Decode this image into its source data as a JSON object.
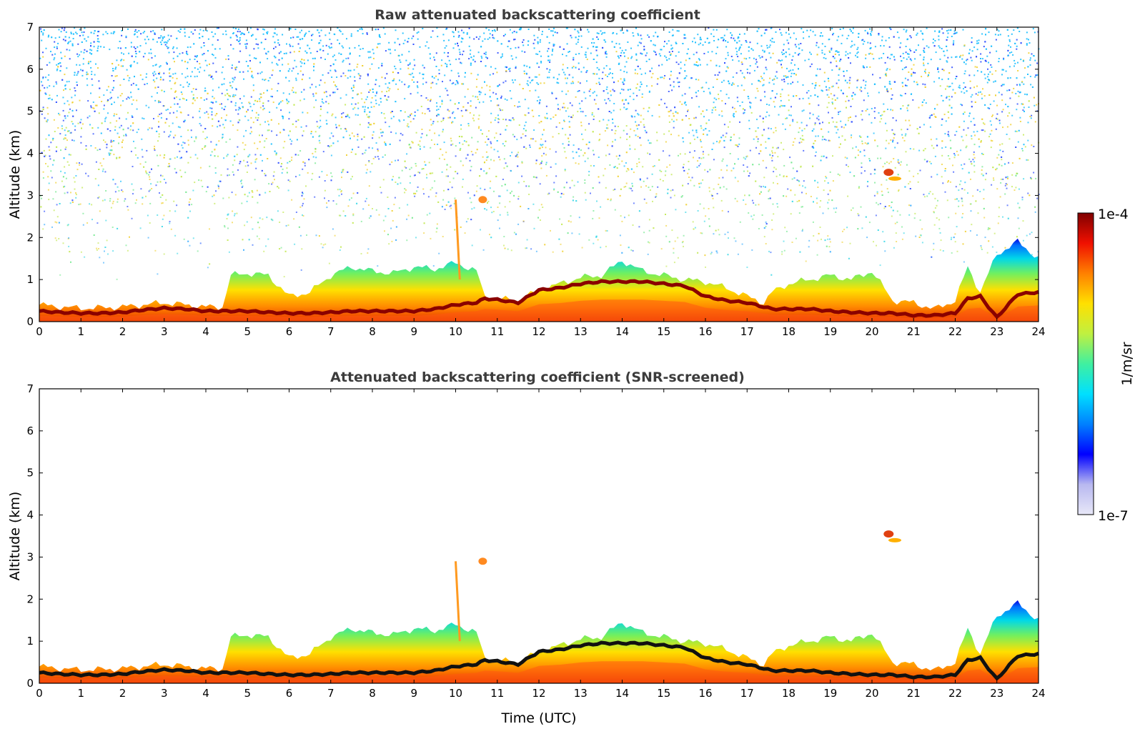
{
  "chart_data": [
    {
      "type": "heatmap",
      "title": "Raw attenuated backscattering coefficient",
      "xlabel": "",
      "ylabel": "Altitude (km)",
      "xlim": [
        0,
        24
      ],
      "ylim": [
        0,
        7
      ],
      "xticks": [
        0,
        1,
        2,
        3,
        4,
        5,
        6,
        7,
        8,
        9,
        10,
        11,
        12,
        13,
        14,
        15,
        16,
        17,
        18,
        19,
        20,
        21,
        22,
        23,
        24
      ],
      "yticks": [
        0,
        1,
        2,
        3,
        4,
        5,
        6,
        7
      ],
      "grid": false,
      "screened": false
    },
    {
      "type": "heatmap",
      "title": "Attenuated backscattering coefficient (SNR-screened)",
      "xlabel": "Time (UTC)",
      "ylabel": "Altitude (km)",
      "xlim": [
        0,
        24
      ],
      "ylim": [
        0,
        7
      ],
      "xticks": [
        0,
        1,
        2,
        3,
        4,
        5,
        6,
        7,
        8,
        9,
        10,
        11,
        12,
        13,
        14,
        15,
        16,
        17,
        18,
        19,
        20,
        21,
        22,
        23,
        24
      ],
      "yticks": [
        0,
        1,
        2,
        3,
        4,
        5,
        6,
        7
      ],
      "grid": false,
      "screened": true
    }
  ],
  "colorbar": {
    "label": "1/m/sr",
    "max_label": "1e-4",
    "min_label": "1e-7",
    "scale": "log",
    "range": [
      1e-07,
      0.0001
    ],
    "colormap": [
      "#e8e8f8",
      "#b8b8f0",
      "#0000ff",
      "#0080ff",
      "#00e0ff",
      "#40f0a0",
      "#c0f040",
      "#ffe000",
      "#ff8000",
      "#f01000",
      "#800000"
    ]
  },
  "layer_profile": {
    "times": [
      0,
      0.5,
      1,
      1.5,
      2,
      2.5,
      3,
      3.5,
      4,
      4.4,
      4.6,
      5,
      5.5,
      6,
      6.5,
      7,
      7.5,
      8,
      8.5,
      9,
      9.5,
      10,
      10.5,
      10.7,
      11,
      11.5,
      12,
      12.5,
      13,
      13.5,
      14,
      14.5,
      15,
      15.5,
      16,
      16.5,
      17,
      17.4,
      17.6,
      18,
      18.5,
      19,
      19.5,
      20,
      20.5,
      21,
      21.5,
      22,
      22.3,
      22.6,
      23,
      23.5,
      24
    ],
    "aerosol_top_km": [
      0.4,
      0.35,
      0.32,
      0.33,
      0.35,
      0.4,
      0.45,
      0.4,
      0.35,
      0.35,
      1.1,
      1.15,
      1.1,
      0.6,
      0.7,
      1.1,
      1.3,
      1.2,
      1.15,
      1.3,
      1.25,
      1.4,
      1.2,
      0.6,
      0.55,
      0.5,
      0.75,
      0.9,
      1.05,
      1.1,
      1.45,
      1.2,
      1.1,
      1.0,
      0.95,
      0.8,
      0.6,
      0.45,
      0.7,
      0.9,
      1.0,
      1.1,
      1.0,
      1.2,
      0.5,
      0.45,
      0.3,
      0.5,
      1.3,
      0.7,
      1.6,
      1.9,
      1.5
    ],
    "layer_height_km": [
      0.25,
      0.22,
      0.2,
      0.2,
      0.22,
      0.28,
      0.32,
      0.3,
      0.25,
      0.25,
      0.25,
      0.25,
      0.22,
      0.2,
      0.2,
      0.22,
      0.25,
      0.25,
      0.25,
      0.25,
      0.3,
      0.4,
      0.45,
      0.55,
      0.52,
      0.45,
      0.75,
      0.8,
      0.9,
      0.95,
      0.95,
      0.95,
      0.9,
      0.85,
      0.6,
      0.5,
      0.45,
      0.35,
      0.3,
      0.3,
      0.3,
      0.25,
      0.22,
      0.2,
      0.2,
      0.15,
      0.15,
      0.2,
      0.55,
      0.6,
      0.1,
      0.65,
      0.7
    ]
  }
}
